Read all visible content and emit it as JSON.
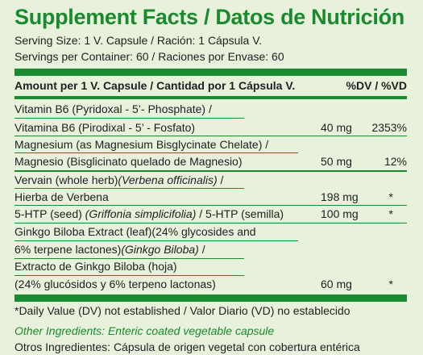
{
  "title": "Supplement Facts / Datos de Nutrición",
  "serving_size": "Serving Size: 1 V. Capsule / Ración: 1 Cápsula V.",
  "servings_per_container": "Servings per Container: 60 / Raciones por Envase: 60",
  "header": {
    "amount_label": "Amount per 1 V. Capsule / Cantidad por 1 Cápsula V.",
    "dv_label": "%DV / %VD"
  },
  "rows": [
    {
      "label": "Vitamin B6 (Pyridoxal - 5’- Phosphate) /"
    },
    {
      "label": "Vitamina B6 (Pirodixal - 5’ - Fosfato)",
      "amount": "40 mg",
      "dv": "2353%"
    },
    {
      "label": "Magnesium (as Magnesium Bisglycinate Chelate) /"
    },
    {
      "label": "Magnesio (Bisglicinato quelado de Magnesio)",
      "amount": "50 mg",
      "dv": "12%"
    },
    {
      "label_a": "Vervain (whole herb)",
      "label_b": "(Verbena officinalis)",
      "label_c": " /"
    },
    {
      "label": "Hierba de Verbena",
      "amount": "198 mg",
      "dv": "*"
    },
    {
      "label_a": "5-HTP (seed) ",
      "label_b": "(Griffonia simplicifolia)",
      "label_c": " / 5-HTP (semilla)",
      "amount": "100 mg",
      "dv": "*"
    },
    {
      "label": "Ginkgo Biloba Extract (leaf)(24% glycosides and"
    },
    {
      "label_a": "6% terpene lactones)",
      "label_b": "(Ginkgo Biloba)",
      "label_c": " /"
    },
    {
      "label": "Extracto de Ginkgo Biloba (hoja)"
    },
    {
      "label": "(24% glucósidos y 6% terpeno lactonas)",
      "amount": "60 mg",
      "dv": "*"
    }
  ],
  "footnote": "*Daily Value (DV) not established / Valor Diario (VD) no establecido",
  "other_ingredients_en": "Other Ingredients: Enteric coated vegetable capsule",
  "other_ingredients_es": "Otros Ingredientes: Cápsula de origen vegetal con cobertura entérica",
  "colors": {
    "accent": "#1a8a2e",
    "background": "#e8f1dc"
  }
}
